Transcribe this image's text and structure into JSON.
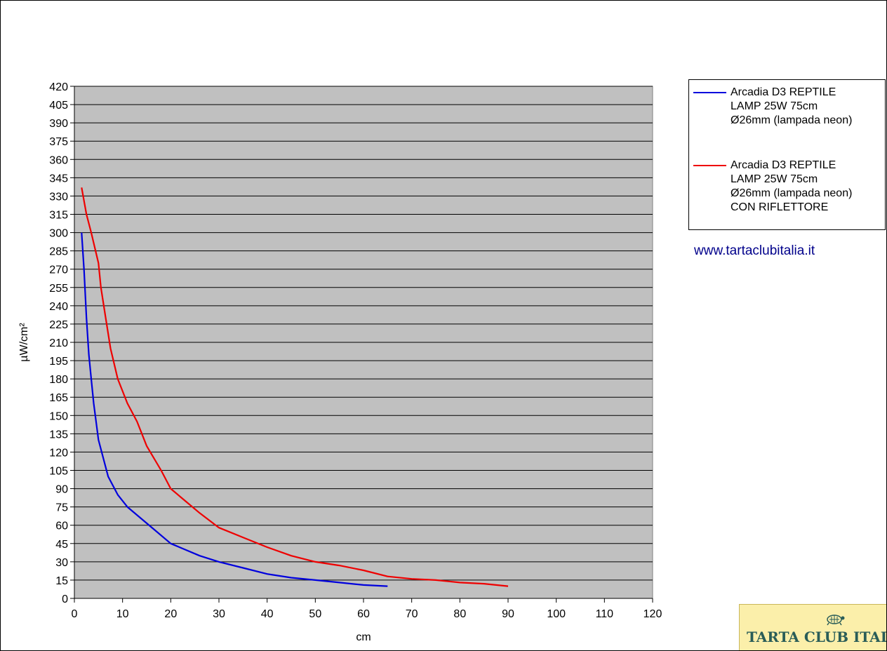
{
  "chart_data": {
    "type": "line",
    "title": "",
    "xlabel": "cm",
    "ylabel": "µW/cm²",
    "xlim": [
      0,
      120
    ],
    "ylim": [
      0,
      420
    ],
    "xticks": [
      0,
      10,
      20,
      30,
      40,
      50,
      60,
      70,
      80,
      90,
      100,
      110,
      120
    ],
    "yticks": [
      0,
      15,
      30,
      45,
      60,
      75,
      90,
      105,
      120,
      135,
      150,
      165,
      180,
      195,
      210,
      225,
      240,
      255,
      270,
      285,
      300,
      315,
      330,
      345,
      360,
      375,
      390,
      405,
      420
    ],
    "grid": "horizontal",
    "plot_background": "#c0c0c0",
    "legend_position": "right",
    "series": [
      {
        "name": "Arcadia D3 REPTILE\nLAMP 25W 75cm\nØ26mm (lampada neon)",
        "color": "#0000dd",
        "points": [
          [
            1.5,
            300
          ],
          [
            2,
            270
          ],
          [
            2.5,
            230
          ],
          [
            3,
            200
          ],
          [
            3.5,
            180
          ],
          [
            4,
            160
          ],
          [
            5,
            130
          ],
          [
            6,
            115
          ],
          [
            7,
            100
          ],
          [
            9,
            85
          ],
          [
            11,
            75
          ],
          [
            14,
            65
          ],
          [
            17,
            55
          ],
          [
            20,
            45
          ],
          [
            23,
            40
          ],
          [
            26,
            35
          ],
          [
            30,
            30
          ],
          [
            35,
            25
          ],
          [
            40,
            20
          ],
          [
            45,
            17
          ],
          [
            50,
            15
          ],
          [
            55,
            13
          ],
          [
            60,
            11
          ],
          [
            65,
            10
          ]
        ]
      },
      {
        "name": "Arcadia D3 REPTILE\nLAMP 25W 75cm\nØ26mm (lampada neon)\nCON RIFLETTORE",
        "color": "#ee0000",
        "points": [
          [
            1.5,
            337
          ],
          [
            2.5,
            315
          ],
          [
            3.5,
            300
          ],
          [
            5,
            275
          ],
          [
            5.5,
            255
          ],
          [
            6.5,
            230
          ],
          [
            7.5,
            205
          ],
          [
            9,
            180
          ],
          [
            11,
            160
          ],
          [
            13,
            145
          ],
          [
            15,
            125
          ],
          [
            18,
            105
          ],
          [
            20,
            90
          ],
          [
            23,
            80
          ],
          [
            26,
            70
          ],
          [
            30,
            58
          ],
          [
            35,
            50
          ],
          [
            40,
            42
          ],
          [
            45,
            35
          ],
          [
            50,
            30
          ],
          [
            55,
            27
          ],
          [
            60,
            23
          ],
          [
            65,
            18
          ],
          [
            70,
            16
          ],
          [
            75,
            15
          ],
          [
            80,
            13
          ],
          [
            85,
            12
          ],
          [
            90,
            10
          ]
        ]
      }
    ]
  },
  "annotations": {
    "website": "www.tartaclubitalia.it"
  },
  "logo": {
    "text": "TARTA CLUB ITALIA",
    "background": "#fbefaa",
    "text_color": "#2a5d58",
    "icon": "turtle-icon"
  }
}
